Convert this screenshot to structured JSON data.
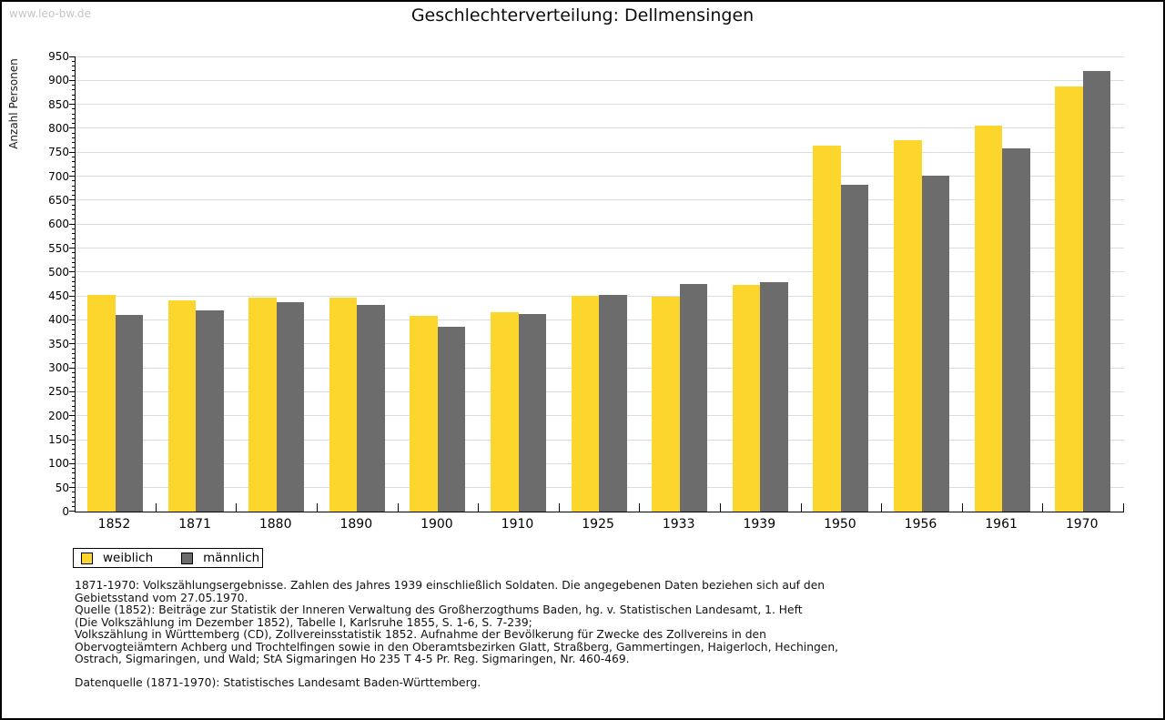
{
  "watermark": "www.leo-bw.de",
  "title": "Geschlechterverteilung: Dellmensingen",
  "chart_data": {
    "type": "bar",
    "title": "Geschlechterverteilung: Dellmensingen",
    "xlabel": "",
    "ylabel": "Anzahl Personen",
    "ylim": [
      0,
      950
    ],
    "ytick_step": 50,
    "yminor_step": 10,
    "grid": "horizontal",
    "legend_position": "bottom-left",
    "categories": [
      "1852",
      "1871",
      "1880",
      "1890",
      "1900",
      "1910",
      "1925",
      "1933",
      "1939",
      "1950",
      "1956",
      "1961",
      "1970"
    ],
    "series": [
      {
        "name": "weiblich",
        "color": "#FCD52D",
        "values": [
          452,
          441,
          446,
          446,
          408,
          416,
          450,
          448,
          474,
          764,
          776,
          806,
          888
        ]
      },
      {
        "name": "männlich",
        "color": "#6C6C6C",
        "values": [
          410,
          420,
          438,
          431,
          386,
          413,
          452,
          476,
          478,
          683,
          701,
          758,
          919
        ]
      }
    ]
  },
  "legend": {
    "items": [
      {
        "label": "weiblich",
        "color": "#FCD52D"
      },
      {
        "label": "männlich",
        "color": "#6C6C6C"
      }
    ]
  },
  "footnotes": {
    "lines": [
      "1871-1970: Volkszählungsergebnisse. Zahlen des Jahres 1939 einschließlich Soldaten. Die angegebenen Daten beziehen sich auf den",
      "Gebietsstand vom 27.05.1970.",
      "Quelle (1852): Beiträge zur Statistik der Inneren Verwaltung des Großherzogthums Baden, hg. v. Statistischen Landesamt, 1. Heft",
      "(Die Volkszählung im Dezember 1852), Tabelle I, Karlsruhe 1855, S. 1-6, S. 7-239;",
      "Volkszählung in Württemberg (CD), Zollvereinsstatistik 1852. Aufnahme der Bevölkerung für Zwecke des Zollvereins in den",
      "Obervogteiämtern Achberg und Trochtelfingen sowie in den Oberamtsbezirken Glatt, Straßberg, Gammertingen, Haigerloch, Hechingen,",
      "Ostrach, Sigmaringen, und Wald; StA Sigmaringen Ho 235 T 4-5 Pr. Reg. Sigmaringen, Nr. 460-469."
    ],
    "datasource": "Datenquelle (1871-1970): Statistisches Landesamt Baden-Württemberg."
  }
}
